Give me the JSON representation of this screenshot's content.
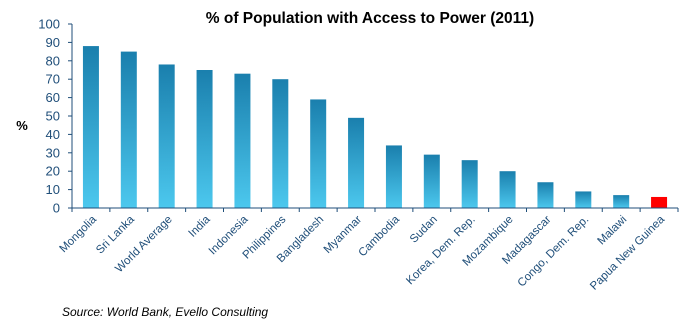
{
  "chart_data": {
    "type": "bar",
    "title": "% of Population with Access to Power (2011)",
    "ylabel": "%",
    "xlabel": "",
    "ylim": [
      0,
      100
    ],
    "yticks": [
      0,
      10,
      20,
      30,
      40,
      50,
      60,
      70,
      80,
      90,
      100
    ],
    "grid": false,
    "legend": "none",
    "categories": [
      "Mongolia",
      "Sri Lanka",
      "World Average",
      "India",
      "Indonesia",
      "Philippines",
      "Bangladesh",
      "Myanmar",
      "Cambodia",
      "Sudan",
      "Korea, Dem. Rep.",
      "Mozambique",
      "Madagascar",
      "Congo, Dem. Rep.",
      "Malawi",
      "Papua New Guinea"
    ],
    "values": [
      88,
      85,
      78,
      75,
      73,
      70,
      59,
      49,
      34,
      29,
      26,
      20,
      14,
      9,
      7,
      6
    ],
    "highlight_category": "Papua New Guinea",
    "colors": {
      "bar_top": "#1a7fad",
      "bar_bottom": "#4cc8ee",
      "highlight": "#ff0000",
      "axis": "#1f4e79",
      "tick_text": "#1f4e79"
    }
  },
  "source": "Source: World Bank, Evello Consulting"
}
